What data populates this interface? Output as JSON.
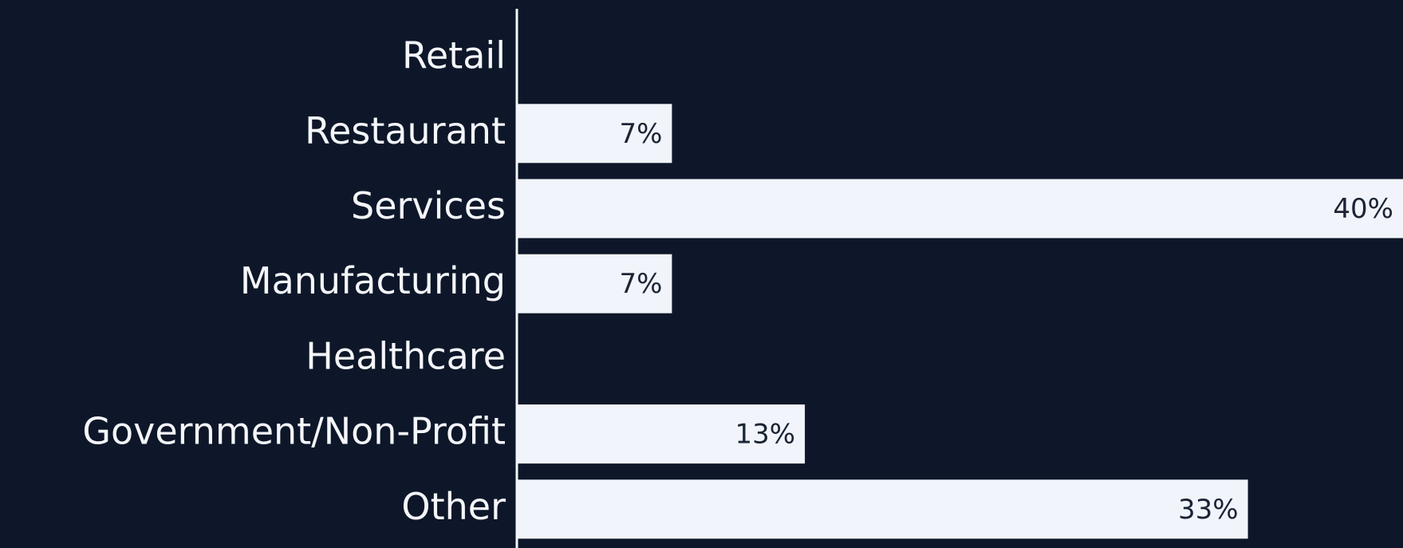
{
  "chart_data": {
    "type": "barh",
    "categories": [
      "Retail",
      "Restaurant",
      "Services",
      "Manufacturing",
      "Healthcare",
      "Government/Non-Profit",
      "Other"
    ],
    "values": [
      0,
      7,
      40,
      7,
      0,
      13,
      33
    ],
    "value_labels": [
      null,
      "7%",
      "40%",
      "7%",
      null,
      "13%",
      "33%"
    ],
    "color": "#f1f4fa",
    "xlim": [
      0,
      40
    ]
  }
}
